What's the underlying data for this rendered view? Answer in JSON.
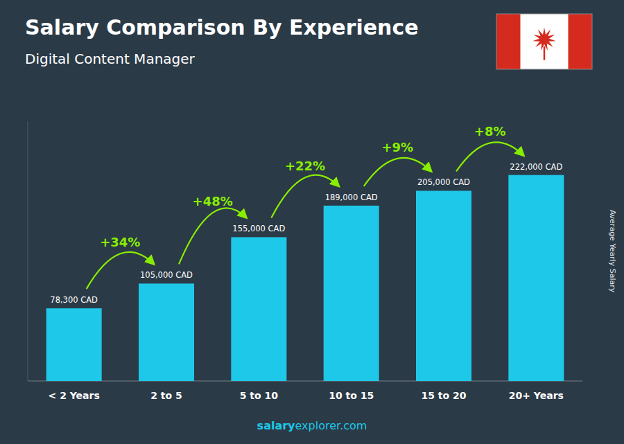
{
  "chart_data": {
    "type": "bar",
    "title": "Salary Comparison By Experience",
    "subtitle": "Digital Content Manager",
    "categories": [
      "< 2 Years",
      "2 to 5",
      "5 to 10",
      "10 to 15",
      "15 to 20",
      "20+ Years"
    ],
    "values": [
      78300,
      105000,
      155000,
      189000,
      205000,
      222000
    ],
    "value_labels": [
      "78,300 CAD",
      "105,000 CAD",
      "155,000 CAD",
      "189,000 CAD",
      "205,000 CAD",
      "222,000 CAD"
    ],
    "data_labels": true,
    "color": "#1ec8e8",
    "ylabel": "Average Yearly Salary",
    "ylim": [
      0,
      280000
    ],
    "tick_labels": "x",
    "grid": false,
    "annotations": [
      {
        "text": "+34%",
        "color": "#88ee00"
      },
      {
        "text": "+48%",
        "color": "#88ee00"
      },
      {
        "text": "+22%",
        "color": "#88ee00"
      },
      {
        "text": "+9%",
        "color": "#88ee00"
      },
      {
        "text": "+8%",
        "color": "#88ee00"
      }
    ],
    "footer": [
      "salary",
      "explorer.com"
    ]
  }
}
